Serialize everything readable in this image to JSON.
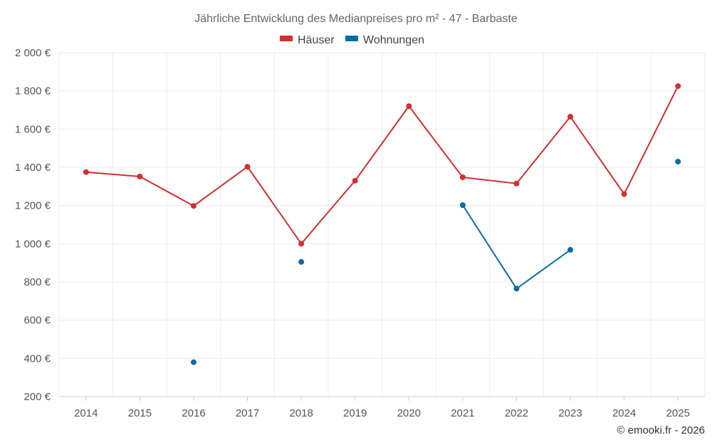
{
  "chart_data": {
    "type": "line",
    "title": "Jährliche Entwicklung des Medianpreises pro m² - 47 - Barbaste",
    "xlabel": "",
    "ylabel": "",
    "categories": [
      "2014",
      "2015",
      "2016",
      "2017",
      "2018",
      "2019",
      "2020",
      "2021",
      "2022",
      "2023",
      "2024",
      "2025"
    ],
    "series": [
      {
        "name": "Häuser",
        "color": "#d32f2f",
        "values": [
          1375,
          1352,
          1198,
          1403,
          1000,
          1330,
          1720,
          1348,
          1315,
          1665,
          1260,
          1825
        ]
      },
      {
        "name": "Wohnungen",
        "color": "#0d6aa6",
        "values": [
          null,
          null,
          380,
          null,
          905,
          null,
          null,
          1202,
          765,
          968,
          null,
          1430
        ]
      }
    ],
    "ylim": [
      200,
      2000
    ],
    "yticks": [
      200,
      400,
      600,
      800,
      1000,
      1200,
      1400,
      1600,
      1800,
      2000
    ],
    "ytick_labels": [
      "200 €",
      "400 €",
      "600 €",
      "800 €",
      "1 000 €",
      "1 200 €",
      "1 400 €",
      "1 600 €",
      "1 800 €",
      "2 000 €"
    ],
    "grid": true,
    "legend_position": "top-center"
  },
  "credit": "© emooki.fr - 2026"
}
